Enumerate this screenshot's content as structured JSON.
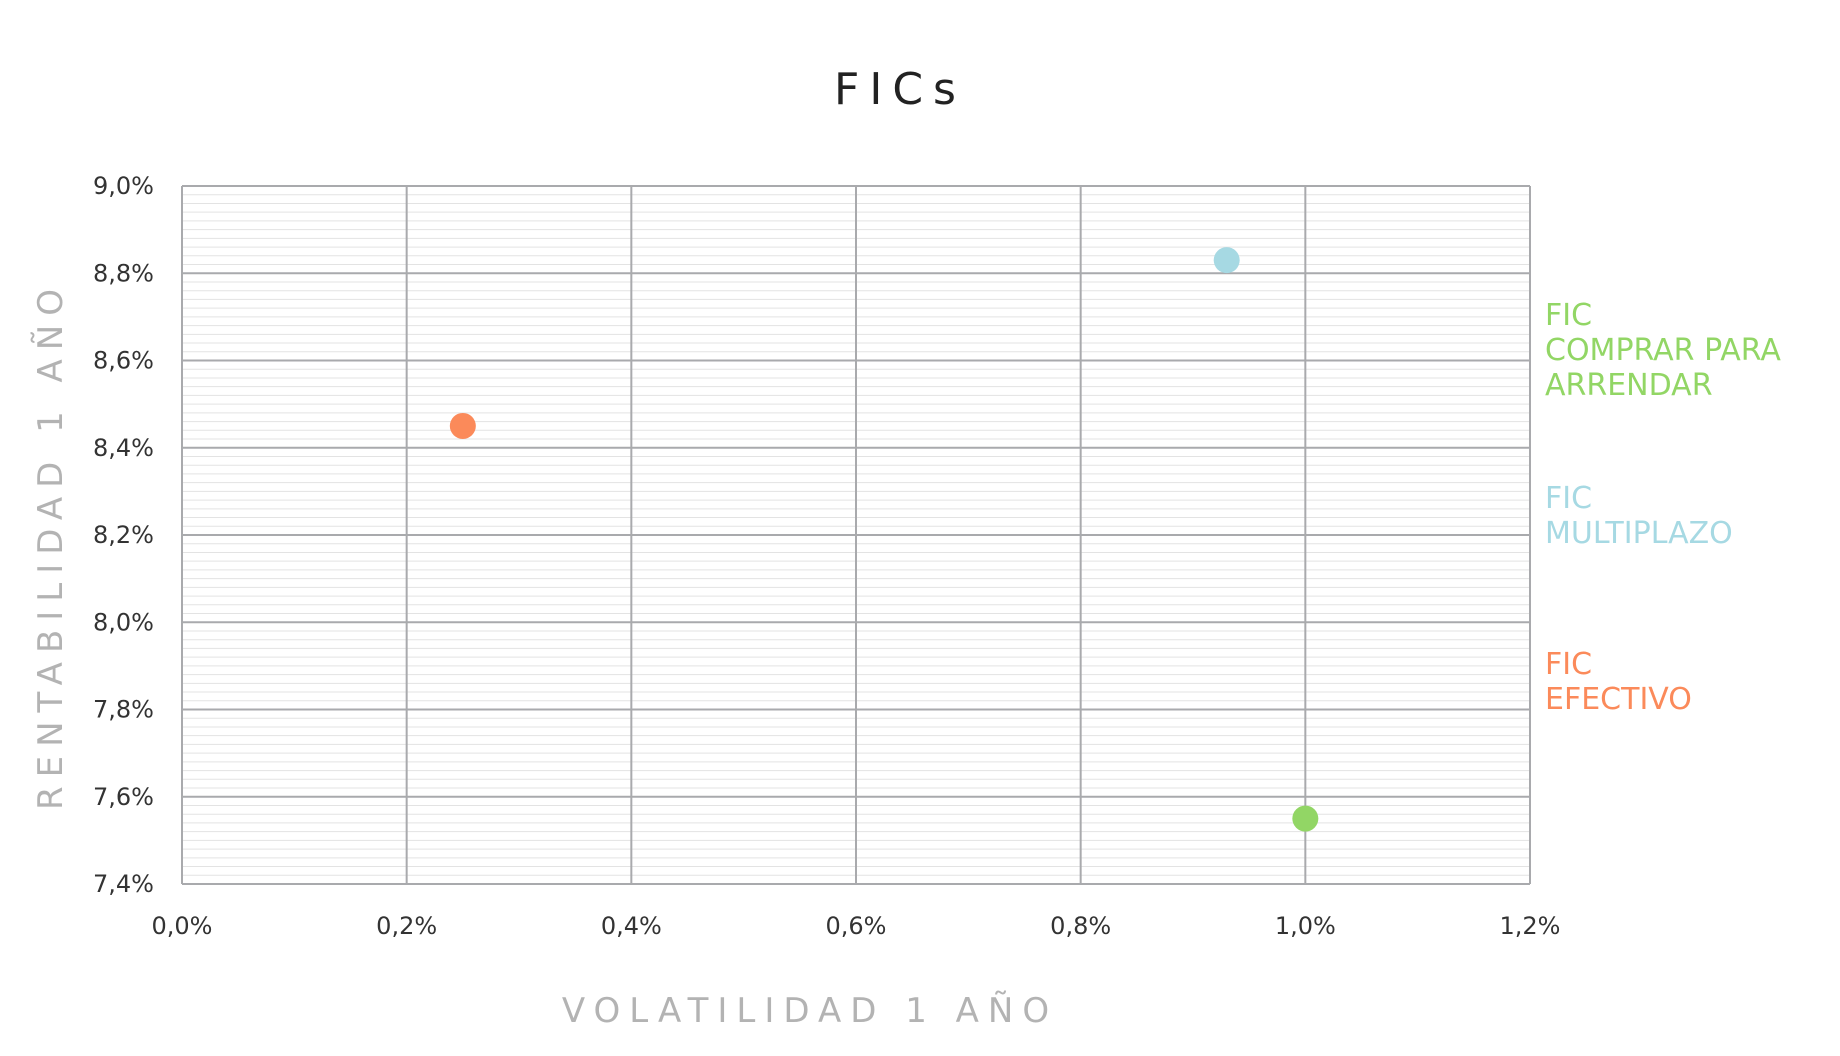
{
  "chart_data": {
    "type": "scatter",
    "title": "FICs",
    "xlabel": "VOLATILIDAD 1 AÑO",
    "ylabel": "RENTABILIDAD 1 AÑO",
    "xlim": [
      0.0,
      1.2
    ],
    "ylim": [
      7.4,
      9.0
    ],
    "x_ticks": [
      0.0,
      0.2,
      0.4,
      0.6,
      0.8,
      1.0,
      1.2
    ],
    "y_ticks": [
      7.4,
      7.6,
      7.8,
      8.0,
      8.2,
      8.4,
      8.6,
      8.8,
      9.0
    ],
    "x_tick_labels": [
      "0,0%",
      "0,2%",
      "0,4%",
      "0,6%",
      "0,8%",
      "1,0%",
      "1,2%"
    ],
    "y_tick_labels": [
      "7,4%",
      "7,6%",
      "7,8%",
      "8,0%",
      "8,2%",
      "8,4%",
      "8,6%",
      "8,8%",
      "9,0%"
    ],
    "grid": true,
    "legend_position": "right",
    "series": [
      {
        "name": "FIC COMPRAR PARA ARRENDAR",
        "legend_lines": [
          "FIC",
          "COMPRAR PARA",
          "ARRENDAR"
        ],
        "color": "#92d665",
        "points": [
          {
            "x": 1.0,
            "y": 7.55
          }
        ]
      },
      {
        "name": "FIC MULTIPLAZO",
        "legend_lines": [
          "FIC",
          "MULTIPLAZO"
        ],
        "color": "#a6d9e3",
        "points": [
          {
            "x": 0.93,
            "y": 8.83
          }
        ]
      },
      {
        "name": "FIC EFECTIVO",
        "legend_lines": [
          "FIC",
          "EFECTIVO"
        ],
        "color": "#fb8a5a",
        "points": [
          {
            "x": 0.25,
            "y": 8.45
          }
        ]
      }
    ]
  }
}
